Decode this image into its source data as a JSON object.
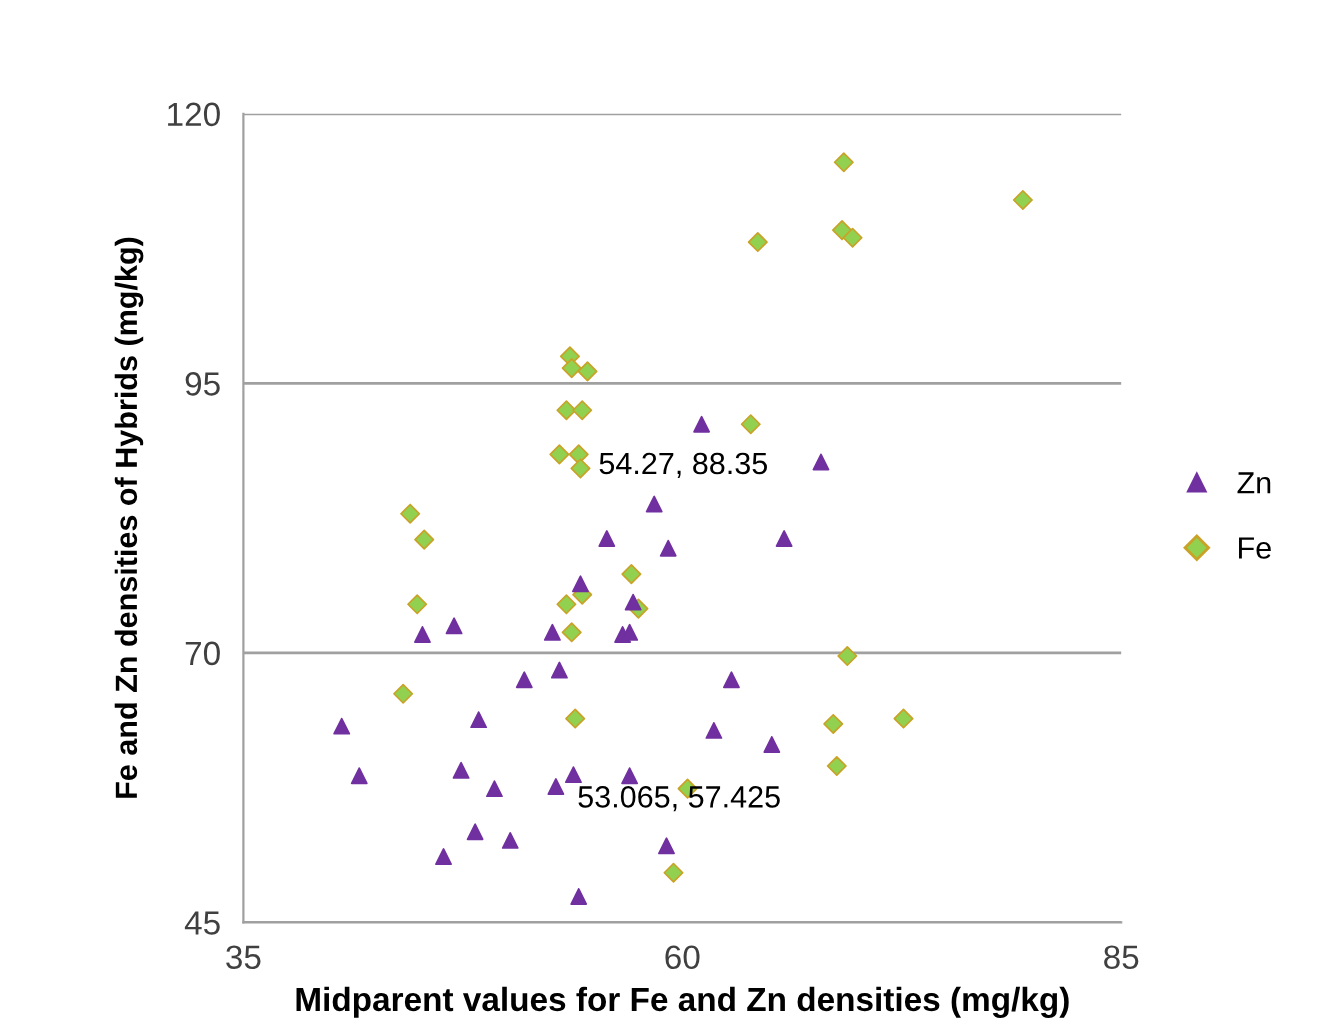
{
  "chart_data": {
    "type": "scatter",
    "xlabel": "Midparent values for Fe and Zn densities (mg/kg)",
    "ylabel": "Fe and Zn densities of Hybrids (mg/kg)",
    "xlim": [
      35,
      85
    ],
    "xticks": [
      35,
      60,
      85
    ],
    "ylim": [
      45,
      120
    ],
    "yticks": [
      45,
      70,
      95,
      120
    ],
    "grid": "y",
    "legend": "right",
    "series": [
      {
        "name": "Zn",
        "color": "#7030a0",
        "marker": "triangle",
        "x": [
          40.6,
          41.6,
          45.2,
          47.0,
          47.4,
          46.4,
          48.4,
          48.2,
          49.3,
          50.2,
          51.0,
          52.6,
          53.0,
          52.8,
          53.8,
          54.1,
          54.2,
          55.7,
          56.6,
          57.2,
          57.0,
          57.0,
          58.4,
          59.2,
          59.1,
          61.1,
          61.8,
          62.8,
          65.1,
          65.8,
          67.9
        ],
        "values": [
          63.2,
          58.6,
          71.7,
          72.5,
          59.1,
          51.1,
          63.8,
          53.4,
          57.4,
          52.6,
          67.5,
          71.9,
          68.4,
          57.6,
          58.7,
          47.4,
          76.4,
          80.6,
          71.7,
          74.7,
          71.9,
          58.6,
          83.8,
          79.7,
          52.1,
          91.2,
          62.8,
          67.5,
          61.5,
          80.6,
          87.7
        ]
      },
      {
        "name": "Fe",
        "color": "#92d050",
        "marker": "diamond",
        "x": [
          69.2,
          69.1,
          69.7,
          64.3,
          79.4,
          63.9,
          53.6,
          53.7,
          54.6,
          53.4,
          54.3,
          53.0,
          54.1,
          54.2,
          44.5,
          45.3,
          44.9,
          44.1,
          53.4,
          54.3,
          57.1,
          57.5,
          53.7,
          53.9,
          69.4,
          68.6,
          72.6,
          68.8,
          60.3,
          59.5
        ],
        "values": [
          115.5,
          109.2,
          108.5,
          108.1,
          112.0,
          91.2,
          97.5,
          96.4,
          96.1,
          92.5,
          92.5,
          88.4,
          88.4,
          87.1,
          82.9,
          80.5,
          74.5,
          66.2,
          74.5,
          75.4,
          77.3,
          74.1,
          71.9,
          63.9,
          69.7,
          63.4,
          63.9,
          59.5,
          57.4,
          49.6
        ]
      }
    ],
    "annotations": [
      {
        "text": "54.27, 88.35",
        "x": 54.27,
        "y": 88.35
      },
      {
        "text": "53.065, 57.425",
        "x": 53.065,
        "y": 57.425
      }
    ]
  }
}
